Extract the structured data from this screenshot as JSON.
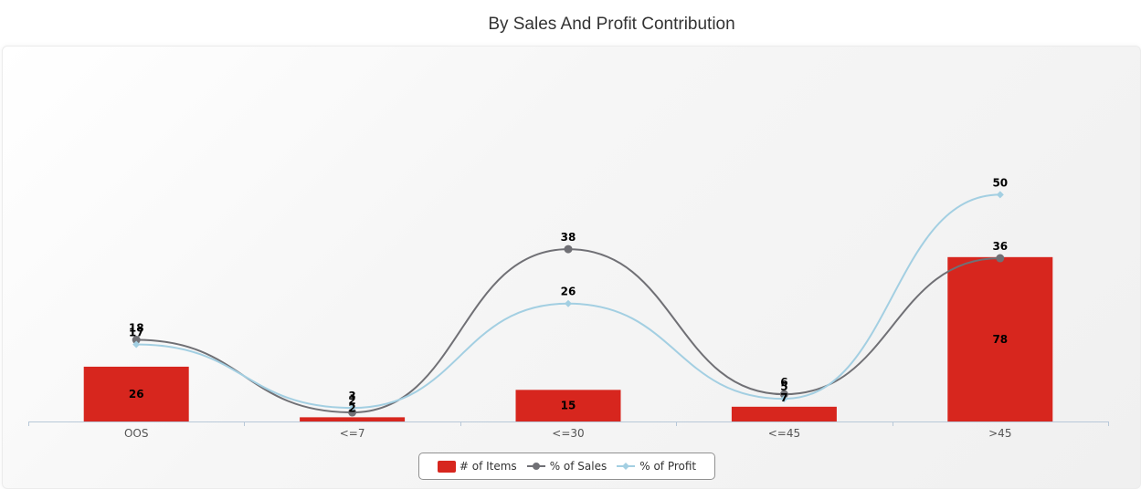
{
  "chart_data": {
    "type": "bar",
    "title": "By Sales And Profit Contribution",
    "categories": [
      "OOS",
      "<=7",
      "<=30",
      "<=45",
      ">45"
    ],
    "series": [
      {
        "name": "# of Items",
        "type": "bar",
        "values": [
          26,
          2,
          15,
          7,
          78
        ],
        "color": "#d7261e"
      },
      {
        "name": "% of Sales",
        "type": "line",
        "values": [
          18,
          2,
          38,
          6,
          36
        ],
        "color": "#707075"
      },
      {
        "name": "% of Profit",
        "type": "line",
        "values": [
          17,
          3,
          26,
          5,
          50
        ],
        "color": "#a3cfe2"
      }
    ],
    "yaxis_left": {
      "min": 0,
      "max": 100,
      "visible": false
    },
    "yaxis_right": {
      "min": 0,
      "max": 70,
      "visible": false
    },
    "grid": false,
    "legend_position": "bottom-center"
  }
}
